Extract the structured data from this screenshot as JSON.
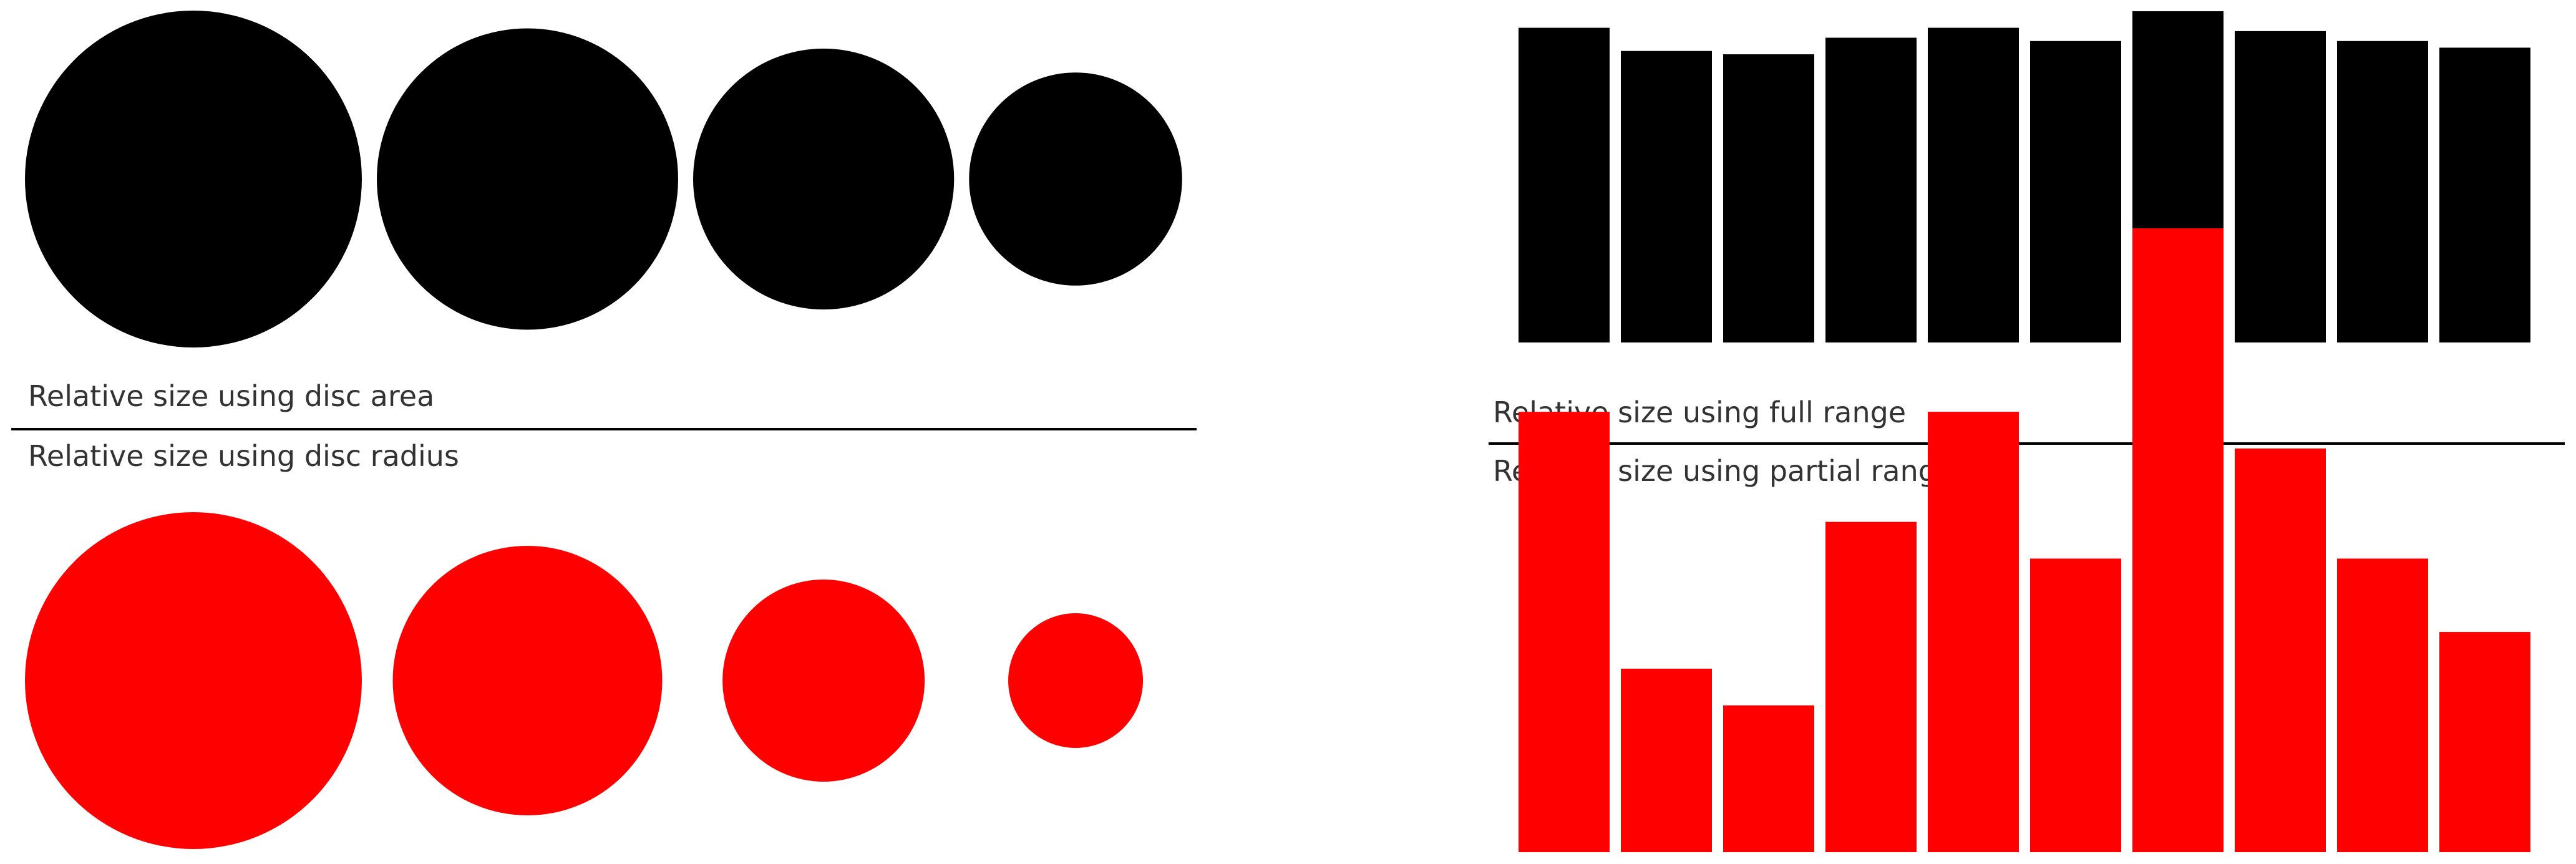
{
  "chart_data": [
    {
      "type": "scatter",
      "encoding": "disc area",
      "title": "Relative size using disc area",
      "values": [
        1.0,
        0.8,
        0.6,
        0.4
      ],
      "color": "#000000"
    },
    {
      "type": "scatter",
      "encoding": "disc radius",
      "title": "Relative size using disc radius",
      "values": [
        1.0,
        0.8,
        0.6,
        0.4
      ],
      "color": "#ff0000"
    },
    {
      "type": "bar",
      "title": "Relative size using full range",
      "values": [
        0.95,
        0.88,
        0.87,
        0.92,
        0.95,
        0.91,
        1.0,
        0.94,
        0.91,
        0.89
      ],
      "ylim": [
        0,
        1
      ],
      "color": "#000000"
    },
    {
      "type": "bar",
      "title": "Relative size using partial range",
      "values": [
        0.95,
        0.88,
        0.87,
        0.92,
        0.95,
        0.91,
        1.0,
        0.94,
        0.91,
        0.89
      ],
      "ylim": [
        0.83,
        1
      ],
      "color": "#ff0000"
    }
  ]
}
